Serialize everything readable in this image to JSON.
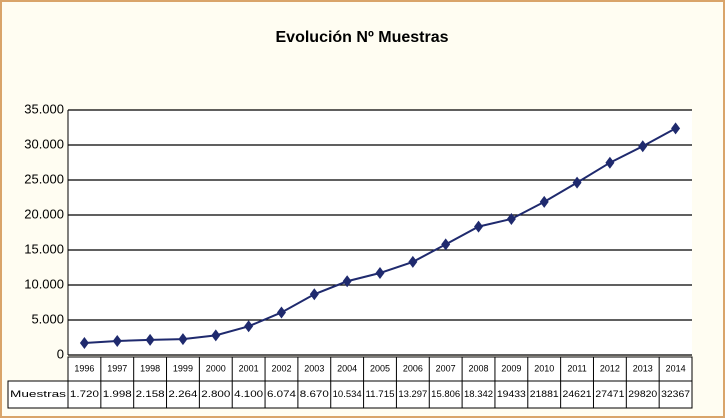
{
  "chart_data": {
    "type": "line",
    "title": "Evolución Nº Muestras",
    "categories": [
      "1996",
      "1997",
      "1998",
      "1999",
      "2000",
      "2001",
      "2002",
      "2003",
      "2004",
      "2005",
      "2006",
      "2007",
      "2008",
      "2009",
      "2010",
      "2011",
      "2012",
      "2013",
      "2014"
    ],
    "series": [
      {
        "name": "Muestras",
        "color": "#1f2a6e",
        "values": [
          1720,
          1998,
          2158,
          2264,
          2800,
          4100,
          6074,
          8670,
          10534,
          11715,
          13297,
          15806,
          18342,
          19433,
          21881,
          24621,
          27471,
          29820,
          32367
        ],
        "value_labels": [
          "1.720",
          "1.998",
          "2.158",
          "2.264",
          "2.800",
          "4.100",
          "6.074",
          "8.670",
          "10.534",
          "11.715",
          "13.297",
          "15.806",
          "18.342",
          "19433",
          "21881",
          "24621",
          "27471",
          "29820",
          "32367"
        ]
      }
    ],
    "ylim": [
      0,
      35000
    ],
    "yticks": [
      0,
      {
        "value": 5000,
        "label": "5.000"
      },
      {
        "value": 10000,
        "label": "10.000"
      },
      {
        "value": 15000,
        "label": "15.000"
      },
      {
        "value": 20000,
        "label": "20.000"
      },
      {
        "value": 25000,
        "label": "25.000"
      },
      {
        "value": 30000,
        "label": "30.000"
      },
      {
        "value": 35000,
        "label": "35.000"
      }
    ],
    "grid": true
  }
}
